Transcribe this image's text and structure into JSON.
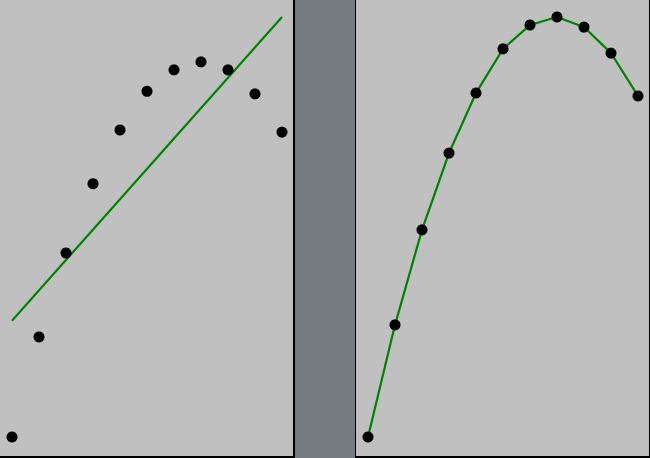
{
  "colors": {
    "background": "#c0c0c0",
    "divider": "#737a80",
    "point": "#000000",
    "fit_line": "#008000",
    "axis": "#000000"
  },
  "chart_data": [
    {
      "type": "scatter",
      "title": "",
      "xlabel": "",
      "ylabel": "",
      "grid": false,
      "legend": "none",
      "xlim": [
        0,
        10
      ],
      "ylim": [
        0,
        1.0
      ],
      "points": {
        "x": [
          0,
          1,
          2,
          3,
          4,
          5,
          6,
          7,
          8,
          9,
          10
        ],
        "y": [
          0.0,
          0.238,
          0.438,
          0.603,
          0.731,
          0.823,
          0.874,
          0.893,
          0.874,
          0.817,
          0.726
        ]
      },
      "fit": {
        "kind": "linear",
        "x": [
          0,
          10
        ],
        "y": [
          0.277,
          1.0
        ]
      }
    },
    {
      "type": "scatter",
      "title": "",
      "xlabel": "",
      "ylabel": "",
      "grid": false,
      "legend": "none",
      "xlim": [
        0,
        10
      ],
      "ylim": [
        0,
        1.0
      ],
      "points": {
        "x": [
          0,
          1,
          2,
          3,
          4,
          5,
          6,
          7,
          8,
          9,
          10
        ],
        "y": [
          0.0,
          0.267,
          0.493,
          0.676,
          0.819,
          0.924,
          0.981,
          1.0,
          0.976,
          0.914,
          0.812
        ]
      },
      "fit": {
        "kind": "curve",
        "x": [
          0,
          1,
          2,
          3,
          4,
          5,
          6,
          7,
          8,
          9,
          10
        ],
        "y": [
          0.0,
          0.267,
          0.493,
          0.676,
          0.819,
          0.924,
          0.981,
          1.0,
          0.976,
          0.914,
          0.812
        ]
      }
    }
  ]
}
